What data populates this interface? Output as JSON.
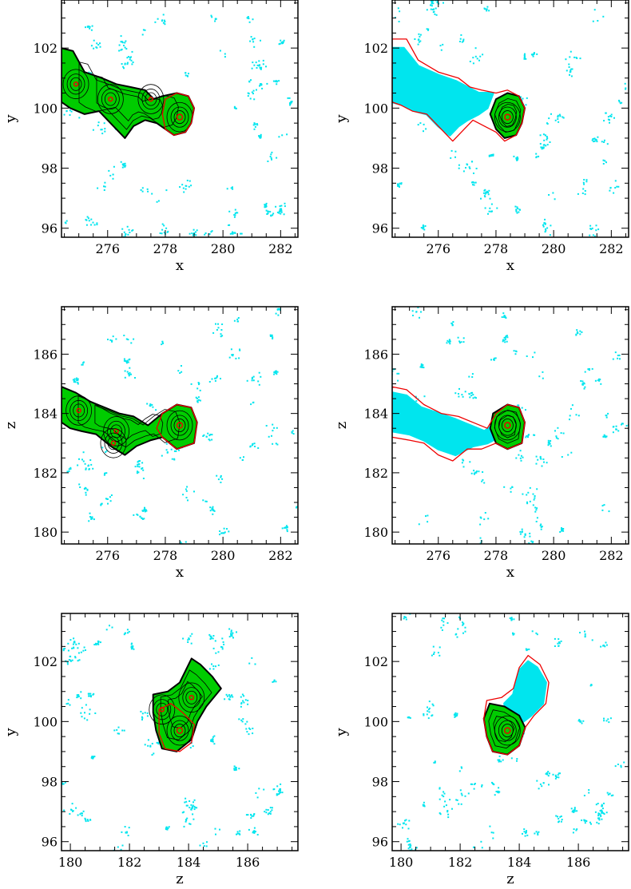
{
  "figure": {
    "colors": {
      "background_particles": "#00e5ee",
      "group_fill": "#00cc00",
      "contour": "#000000",
      "boundary": "#ee0000",
      "axis": "#000000"
    }
  },
  "chart_data": [
    {
      "type": "scatter",
      "panel": "xy-left",
      "xlabel": "x",
      "ylabel": "y",
      "xticks": [
        "276",
        "278",
        "280",
        "282"
      ],
      "yticks": [
        "96",
        "98",
        "100",
        "102"
      ],
      "xlim": [
        274.4,
        282.6
      ],
      "ylim": [
        95.7,
        103.6
      ],
      "grid": false,
      "cyan_region": null,
      "red_boundary": [
        [
          278.0,
          100.3
        ],
        [
          278.4,
          100.5
        ],
        [
          278.8,
          100.4
        ],
        [
          279.0,
          100.0
        ],
        [
          278.9,
          99.5
        ],
        [
          278.7,
          99.2
        ],
        [
          278.3,
          99.1
        ],
        [
          278.0,
          99.3
        ],
        [
          277.9,
          99.8
        ]
      ],
      "green_region": [
        [
          274.4,
          102.0
        ],
        [
          274.8,
          101.9
        ],
        [
          275.2,
          101.2
        ],
        [
          275.8,
          101.0
        ],
        [
          276.3,
          100.8
        ],
        [
          276.8,
          100.7
        ],
        [
          277.3,
          100.6
        ],
        [
          277.6,
          100.3
        ],
        [
          277.9,
          100.4
        ],
        [
          278.4,
          100.5
        ],
        [
          278.8,
          100.4
        ],
        [
          279.0,
          100.0
        ],
        [
          278.9,
          99.5
        ],
        [
          278.7,
          99.2
        ],
        [
          278.3,
          99.1
        ],
        [
          278.0,
          99.3
        ],
        [
          277.7,
          99.5
        ],
        [
          277.3,
          99.6
        ],
        [
          276.9,
          99.4
        ],
        [
          276.6,
          99.0
        ],
        [
          276.2,
          99.4
        ],
        [
          275.7,
          99.9
        ],
        [
          275.2,
          99.8
        ],
        [
          274.7,
          100.0
        ],
        [
          274.4,
          100.2
        ]
      ],
      "centers": [
        [
          278.5,
          99.7
        ],
        [
          274.9,
          100.8
        ],
        [
          276.1,
          100.3
        ],
        [
          277.5,
          100.3
        ]
      ]
    },
    {
      "type": "scatter",
      "panel": "xy-right",
      "xlabel": "x",
      "ylabel": "y",
      "xticks": [
        "276",
        "278",
        "280",
        "282"
      ],
      "yticks": [
        "96",
        "98",
        "100",
        "102"
      ],
      "xlim": [
        274.4,
        282.6
      ],
      "ylim": [
        95.7,
        103.6
      ],
      "grid": false,
      "cyan_region": [
        [
          274.4,
          102.0
        ],
        [
          274.8,
          102.0
        ],
        [
          275.3,
          101.4
        ],
        [
          276.0,
          101.1
        ],
        [
          276.6,
          100.9
        ],
        [
          277.0,
          100.7
        ],
        [
          277.4,
          100.5
        ],
        [
          277.9,
          100.5
        ],
        [
          277.7,
          100.0
        ],
        [
          277.4,
          99.8
        ],
        [
          277.0,
          99.6
        ],
        [
          276.7,
          99.4
        ],
        [
          276.4,
          99.1
        ],
        [
          276.0,
          99.4
        ],
        [
          275.6,
          99.8
        ],
        [
          275.2,
          99.9
        ],
        [
          274.8,
          100.1
        ],
        [
          274.4,
          100.2
        ]
      ],
      "red_boundary": [
        [
          274.4,
          102.3
        ],
        [
          274.9,
          102.3
        ],
        [
          275.3,
          101.6
        ],
        [
          276.0,
          101.2
        ],
        [
          276.7,
          101.0
        ],
        [
          277.1,
          100.7
        ],
        [
          277.5,
          100.6
        ],
        [
          278.0,
          100.5
        ],
        [
          278.4,
          100.6
        ],
        [
          278.8,
          100.4
        ],
        [
          279.0,
          100.0
        ],
        [
          278.9,
          99.5
        ],
        [
          278.7,
          99.1
        ],
        [
          278.3,
          98.9
        ],
        [
          278.0,
          99.2
        ],
        [
          277.6,
          99.4
        ],
        [
          277.2,
          99.6
        ],
        [
          276.9,
          99.3
        ],
        [
          276.5,
          98.9
        ],
        [
          276.1,
          99.3
        ],
        [
          275.6,
          99.8
        ],
        [
          275.1,
          99.9
        ],
        [
          274.7,
          100.1
        ],
        [
          274.4,
          100.2
        ]
      ],
      "green_region": [
        [
          278.0,
          100.3
        ],
        [
          278.4,
          100.5
        ],
        [
          278.8,
          100.4
        ],
        [
          279.0,
          100.0
        ],
        [
          278.9,
          99.5
        ],
        [
          278.7,
          99.1
        ],
        [
          278.3,
          99.0
        ],
        [
          278.0,
          99.3
        ],
        [
          277.8,
          99.8
        ]
      ],
      "centers": [
        [
          278.4,
          99.7
        ]
      ]
    },
    {
      "type": "scatter",
      "panel": "xz-left",
      "xlabel": "x",
      "ylabel": "z",
      "xticks": [
        "276",
        "278",
        "280",
        "282"
      ],
      "yticks": [
        "180",
        "182",
        "184",
        "186"
      ],
      "xlim": [
        274.4,
        282.6
      ],
      "ylim": [
        179.6,
        187.6
      ],
      "grid": false,
      "cyan_region": null,
      "red_boundary": [
        [
          277.9,
          184.0
        ],
        [
          278.4,
          184.3
        ],
        [
          278.9,
          184.2
        ],
        [
          279.1,
          183.7
        ],
        [
          279.0,
          183.0
        ],
        [
          278.4,
          182.8
        ],
        [
          277.9,
          183.2
        ],
        [
          277.7,
          183.5
        ]
      ],
      "green_region": [
        [
          274.4,
          184.9
        ],
        [
          274.9,
          184.7
        ],
        [
          275.4,
          184.4
        ],
        [
          275.9,
          184.2
        ],
        [
          276.4,
          184.0
        ],
        [
          276.9,
          183.9
        ],
        [
          277.4,
          183.6
        ],
        [
          277.9,
          184.0
        ],
        [
          278.4,
          184.3
        ],
        [
          278.9,
          184.2
        ],
        [
          279.1,
          183.7
        ],
        [
          279.0,
          183.0
        ],
        [
          278.4,
          182.8
        ],
        [
          277.9,
          183.2
        ],
        [
          277.5,
          183.1
        ],
        [
          277.0,
          182.9
        ],
        [
          276.6,
          182.6
        ],
        [
          276.1,
          182.9
        ],
        [
          275.6,
          183.3
        ],
        [
          275.1,
          183.4
        ],
        [
          274.7,
          183.5
        ],
        [
          274.4,
          183.7
        ]
      ],
      "centers": [
        [
          278.5,
          183.6
        ],
        [
          275.0,
          184.1
        ],
        [
          276.3,
          183.4
        ],
        [
          276.2,
          183.0
        ]
      ]
    },
    {
      "type": "scatter",
      "panel": "xz-right",
      "xlabel": "x",
      "ylabel": "z",
      "xticks": [
        "276",
        "278",
        "280",
        "282"
      ],
      "yticks": [
        "180",
        "182",
        "184",
        "186"
      ],
      "xlim": [
        274.4,
        282.6
      ],
      "ylim": [
        179.6,
        187.6
      ],
      "grid": false,
      "cyan_region": [
        [
          274.4,
          184.7
        ],
        [
          274.9,
          184.6
        ],
        [
          275.4,
          184.2
        ],
        [
          276.0,
          184.0
        ],
        [
          276.6,
          183.8
        ],
        [
          277.1,
          183.6
        ],
        [
          277.6,
          183.4
        ],
        [
          277.9,
          183.6
        ],
        [
          278.1,
          183.2
        ],
        [
          277.7,
          183.0
        ],
        [
          277.2,
          182.9
        ],
        [
          276.6,
          182.6
        ],
        [
          276.0,
          182.8
        ],
        [
          275.5,
          183.1
        ],
        [
          275.0,
          183.3
        ],
        [
          274.4,
          183.4
        ]
      ],
      "red_boundary": [
        [
          274.4,
          184.9
        ],
        [
          274.9,
          184.8
        ],
        [
          275.5,
          184.3
        ],
        [
          276.1,
          184.0
        ],
        [
          276.7,
          183.9
        ],
        [
          277.2,
          183.7
        ],
        [
          277.7,
          183.5
        ],
        [
          278.0,
          184.0
        ],
        [
          278.4,
          184.3
        ],
        [
          278.8,
          184.2
        ],
        [
          279.0,
          183.7
        ],
        [
          278.9,
          183.0
        ],
        [
          278.4,
          182.8
        ],
        [
          278.0,
          183.0
        ],
        [
          277.5,
          182.8
        ],
        [
          277.0,
          182.8
        ],
        [
          276.5,
          182.4
        ],
        [
          276.0,
          182.6
        ],
        [
          275.5,
          183.0
        ],
        [
          275.0,
          183.1
        ],
        [
          274.4,
          183.2
        ]
      ],
      "green_region": [
        [
          277.9,
          184.0
        ],
        [
          278.4,
          184.3
        ],
        [
          278.8,
          184.2
        ],
        [
          279.0,
          183.7
        ],
        [
          278.9,
          183.0
        ],
        [
          278.4,
          182.8
        ],
        [
          278.0,
          183.0
        ],
        [
          277.8,
          183.5
        ]
      ],
      "centers": [
        [
          278.4,
          183.6
        ]
      ]
    },
    {
      "type": "scatter",
      "panel": "zy-left",
      "xlabel": "z",
      "ylabel": "y",
      "xticks": [
        "180",
        "182",
        "184",
        "186"
      ],
      "yticks": [
        "96",
        "98",
        "100",
        "102"
      ],
      "xlim": [
        179.7,
        187.7
      ],
      "ylim": [
        95.7,
        103.6
      ],
      "grid": false,
      "cyan_region": null,
      "red_boundary": [
        [
          183.0,
          100.4
        ],
        [
          183.4,
          100.6
        ],
        [
          183.8,
          100.3
        ],
        [
          184.2,
          99.9
        ],
        [
          184.1,
          99.3
        ],
        [
          183.7,
          99.0
        ],
        [
          183.2,
          99.1
        ],
        [
          183.0,
          99.6
        ]
      ],
      "green_region": [
        [
          182.8,
          100.9
        ],
        [
          183.3,
          101.0
        ],
        [
          183.7,
          101.3
        ],
        [
          184.1,
          102.1
        ],
        [
          184.4,
          101.9
        ],
        [
          184.8,
          101.5
        ],
        [
          185.1,
          101.1
        ],
        [
          184.6,
          100.5
        ],
        [
          184.3,
          100.0
        ],
        [
          184.1,
          99.4
        ],
        [
          183.6,
          99.0
        ],
        [
          183.1,
          99.1
        ],
        [
          182.9,
          99.7
        ],
        [
          182.8,
          100.3
        ]
      ],
      "centers": [
        [
          183.7,
          99.7
        ],
        [
          183.1,
          100.4
        ],
        [
          184.1,
          100.8
        ]
      ]
    },
    {
      "type": "scatter",
      "panel": "zy-right",
      "xlabel": "z",
      "ylabel": "y",
      "xticks": [
        "180",
        "182",
        "184",
        "186"
      ],
      "yticks": [
        "96",
        "98",
        "100",
        "102"
      ],
      "xlim": [
        179.7,
        187.7
      ],
      "ylim": [
        95.7,
        103.6
      ],
      "grid": false,
      "cyan_region": [
        [
          183.5,
          100.6
        ],
        [
          183.8,
          100.9
        ],
        [
          184.0,
          101.7
        ],
        [
          184.3,
          102.0
        ],
        [
          184.6,
          101.8
        ],
        [
          184.9,
          101.3
        ],
        [
          184.8,
          100.6
        ],
        [
          184.4,
          100.2
        ],
        [
          184.0,
          99.9
        ],
        [
          183.6,
          100.0
        ]
      ],
      "red_boundary": [
        [
          182.9,
          100.7
        ],
        [
          183.4,
          100.8
        ],
        [
          183.8,
          101.1
        ],
        [
          184.0,
          101.8
        ],
        [
          184.3,
          102.2
        ],
        [
          184.7,
          101.9
        ],
        [
          185.0,
          101.3
        ],
        [
          184.9,
          100.6
        ],
        [
          184.5,
          100.2
        ],
        [
          184.2,
          99.8
        ],
        [
          184.0,
          99.2
        ],
        [
          183.6,
          98.9
        ],
        [
          183.1,
          99.0
        ],
        [
          182.9,
          99.5
        ],
        [
          182.8,
          100.1
        ]
      ],
      "green_region": [
        [
          183.0,
          100.6
        ],
        [
          183.5,
          100.5
        ],
        [
          184.0,
          100.2
        ],
        [
          184.2,
          99.8
        ],
        [
          184.0,
          99.2
        ],
        [
          183.6,
          98.9
        ],
        [
          183.1,
          99.0
        ],
        [
          182.9,
          99.5
        ],
        [
          182.8,
          100.1
        ]
      ],
      "centers": [
        [
          183.6,
          99.7
        ]
      ]
    }
  ]
}
